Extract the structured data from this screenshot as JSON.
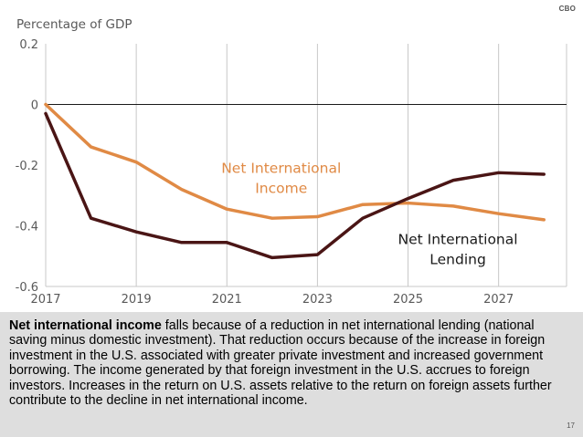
{
  "logo": "CBO",
  "page_number": "17",
  "caption": {
    "bold": "Net international income",
    "rest": " falls because of a reduction in net international lending (national saving minus domestic investment). That reduction occurs because of the increase in foreign investment in the U.S. associated with greater private investment and increased government borrowing. The income generated by that foreign investment in the U.S. accrues to foreign investors. Increases in the return on U.S. assets relative to the return on foreign assets further contribute to the decline in net international income."
  },
  "chart_data": {
    "type": "line",
    "title": "",
    "ylabel": "Percentage of GDP",
    "xlabel": "",
    "xlim": [
      2017,
      2028.5
    ],
    "ylim": [
      -0.6,
      0.2
    ],
    "x_ticks": [
      2017,
      2019,
      2021,
      2023,
      2025,
      2027
    ],
    "x_tick_labels": [
      "2017",
      "2019",
      "2021",
      "2023",
      "2025",
      "2027"
    ],
    "y_ticks": [
      0.2,
      0,
      -0.2,
      -0.4,
      -0.6
    ],
    "y_tick_labels": [
      "0.2",
      "0",
      "-0.2",
      "-0.4",
      "-0.6"
    ],
    "grid": "vertical",
    "zero_line": true,
    "colors": {
      "income": "#e08a45",
      "lending": "#4a1515",
      "grid": "#c8c8c8",
      "tick_label": "#595959",
      "series_label": "#1a1a1a",
      "zero_line": "#1a1a1a"
    },
    "x": [
      2017,
      2018,
      2019,
      2020,
      2021,
      2022,
      2023,
      2024,
      2025,
      2026,
      2027,
      2028
    ],
    "series": [
      {
        "name": "Net International Income",
        "label_lines": [
          "Net International",
          "Income"
        ],
        "label_anchor": [
          2022.2,
          -0.225
        ],
        "values": [
          0.0,
          -0.14,
          -0.19,
          -0.28,
          -0.345,
          -0.375,
          -0.37,
          -0.33,
          -0.325,
          -0.335,
          -0.36,
          -0.38
        ]
      },
      {
        "name": "Net International Lending",
        "label_lines": [
          "Net International",
          "Lending"
        ],
        "label_anchor": [
          2026.1,
          -0.46
        ],
        "values": [
          -0.03,
          -0.375,
          -0.42,
          -0.455,
          -0.455,
          -0.505,
          -0.495,
          -0.375,
          -0.31,
          -0.25,
          -0.225,
          -0.23
        ]
      }
    ]
  }
}
